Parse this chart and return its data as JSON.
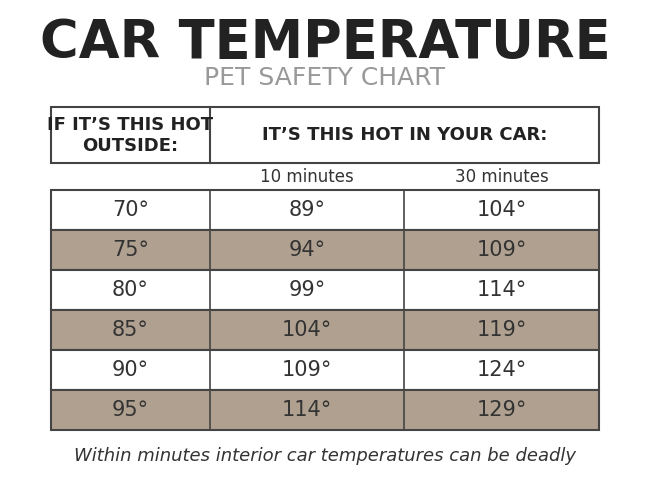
{
  "title": "CAR TEMPERATURE",
  "subtitle": "PET SAFETY CHART",
  "header_col1": "IF IT’S THIS HOT\nOUTSIDE:",
  "header_col2": "IT’S THIS HOT IN YOUR CAR:",
  "subheader_col2": "10 minutes",
  "subheader_col3": "30 minutes",
  "rows": [
    [
      "70°",
      "89°",
      "104°"
    ],
    [
      "75°",
      "94°",
      "109°"
    ],
    [
      "80°",
      "99°",
      "114°"
    ],
    [
      "85°",
      "104°",
      "119°"
    ],
    [
      "90°",
      "109°",
      "124°"
    ],
    [
      "95°",
      "114°",
      "129°"
    ]
  ],
  "footer": "Within minutes interior car temperatures can be deadly",
  "bg_color": "#ffffff",
  "title_color": "#222222",
  "subtitle_color": "#999999",
  "header_bg": "#ffffff",
  "header_border_color": "#444444",
  "row_odd_bg": "#ffffff",
  "row_even_bg": "#b0a090",
  "row_text_color": "#333333",
  "footer_color": "#333333",
  "title_fontsize": 38,
  "subtitle_fontsize": 18,
  "header_fontsize": 13,
  "data_fontsize": 15,
  "footer_fontsize": 13,
  "subheader_fontsize": 12
}
